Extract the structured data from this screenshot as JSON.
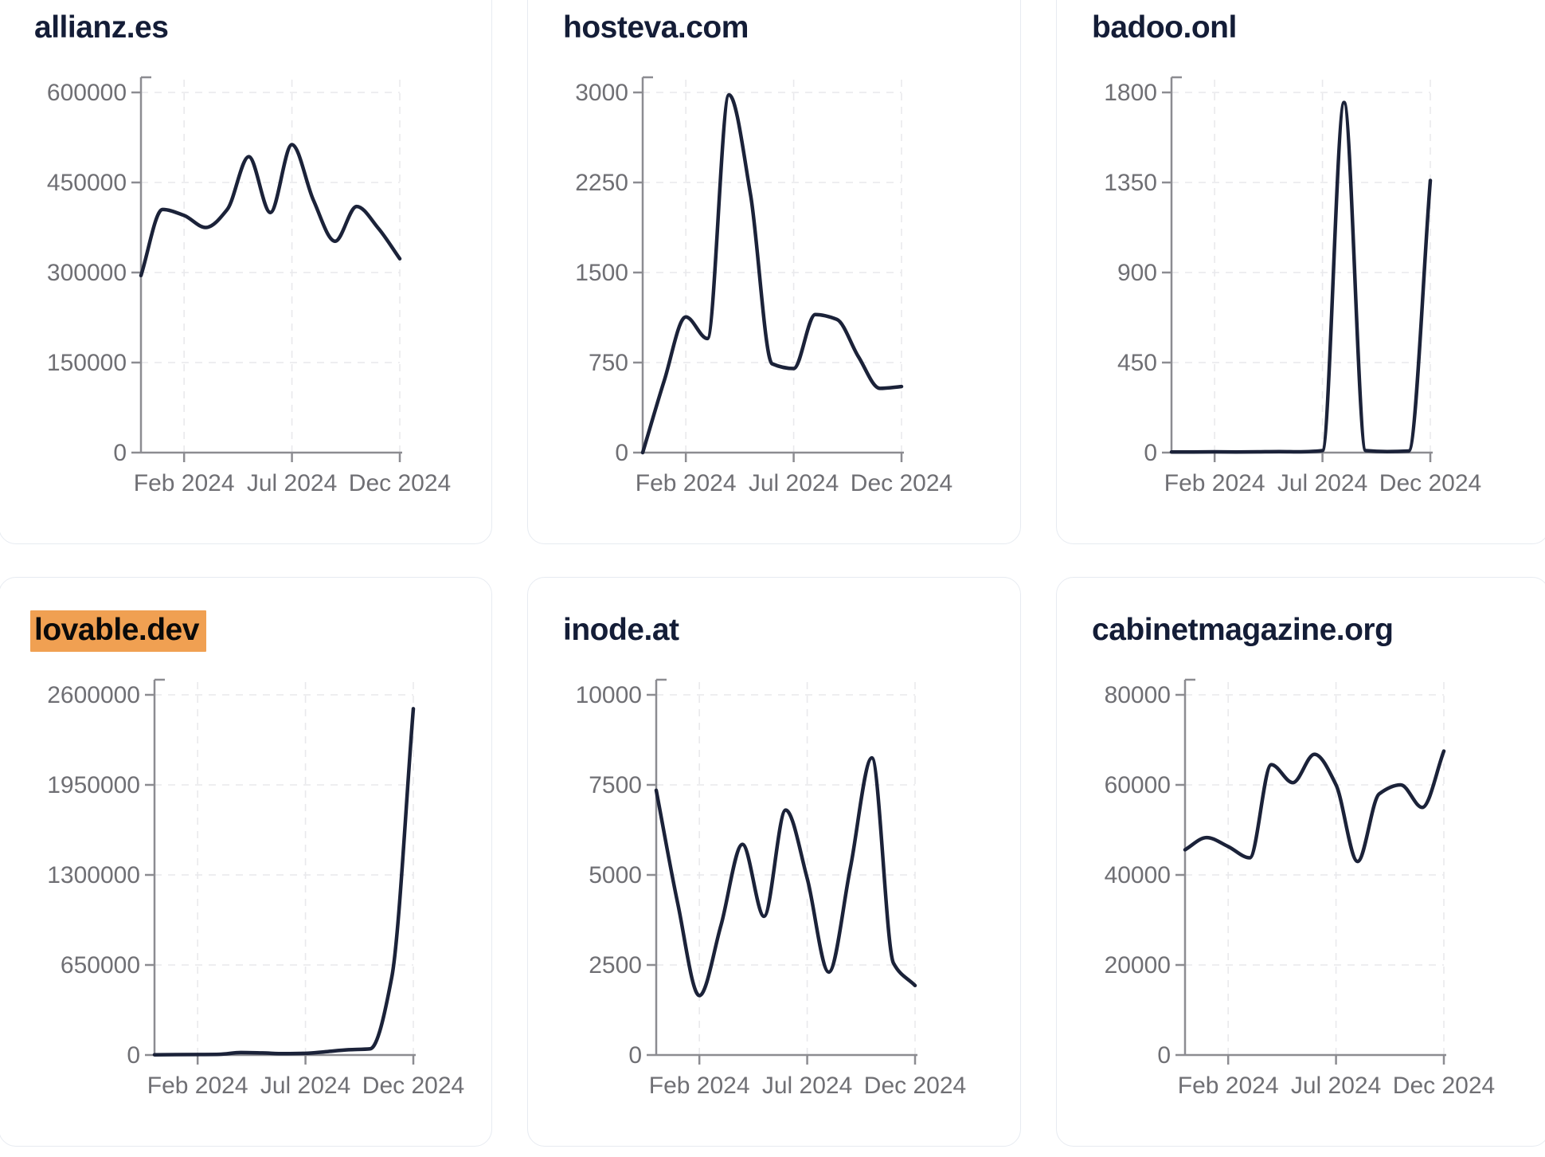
{
  "theme": {
    "page_background": "#ffffff",
    "card_background": "#ffffff",
    "card_border_color": "#e7ebf1",
    "line_color": "#1b2239",
    "title_color": "#141d37",
    "tick_label_color": "#6f6f74",
    "axis_color": "#8c8c91",
    "grid_color": "#e9e9ec",
    "highlight_color": "#f0a052",
    "highlight_text_color": "#0a0a0a"
  },
  "x_axis": {
    "tick_labels": [
      "Feb 2024",
      "Jul 2024",
      "Dec 2024"
    ],
    "tick_indices": [
      2,
      7,
      12
    ]
  },
  "chart_data": [
    {
      "type": "line",
      "title": "allianz.es",
      "title_highlighted": false,
      "x": [
        "Dec 2023",
        "Jan 2024",
        "Feb 2024",
        "Mar 2024",
        "Apr 2024",
        "May 2024",
        "Jun 2024",
        "Jul 2024",
        "Aug 2024",
        "Sep 2024",
        "Oct 2024",
        "Nov 2024",
        "Dec 2024"
      ],
      "x_tick_labels": [
        "Feb 2024",
        "Jul 2024",
        "Dec 2024"
      ],
      "x_tick_indices": [
        2,
        7,
        12
      ],
      "values": [
        295000,
        405000,
        395000,
        375000,
        405000,
        493000,
        400000,
        513000,
        420000,
        352000,
        410000,
        374000,
        323000
      ],
      "y_ticks": [
        0,
        150000,
        300000,
        450000,
        600000
      ],
      "ylim": [
        0,
        600000
      ],
      "grid": true,
      "legend": "none"
    },
    {
      "type": "line",
      "title": "hosteva.com",
      "title_highlighted": false,
      "x": [
        "Dec 2023",
        "Jan 2024",
        "Feb 2024",
        "Mar 2024",
        "Apr 2024",
        "May 2024",
        "Jun 2024",
        "Jul 2024",
        "Aug 2024",
        "Sep 2024",
        "Oct 2024",
        "Nov 2024",
        "Dec 2024"
      ],
      "x_tick_labels": [
        "Feb 2024",
        "Jul 2024",
        "Dec 2024"
      ],
      "x_tick_indices": [
        2,
        7,
        12
      ],
      "values": [
        0,
        600,
        1130,
        950,
        2980,
        2150,
        740,
        700,
        1150,
        1110,
        800,
        535,
        550
      ],
      "y_ticks": [
        0,
        750,
        1500,
        2250,
        3000
      ],
      "ylim": [
        0,
        3000
      ],
      "grid": true,
      "legend": "none"
    },
    {
      "type": "line",
      "title": "badoo.onl",
      "title_highlighted": false,
      "x": [
        "Dec 2023",
        "Jan 2024",
        "Feb 2024",
        "Mar 2024",
        "Apr 2024",
        "May 2024",
        "Jun 2024",
        "Jul 2024",
        "Aug 2024",
        "Sep 2024",
        "Oct 2024",
        "Nov 2024",
        "Dec 2024"
      ],
      "x_tick_labels": [
        "Feb 2024",
        "Jul 2024",
        "Dec 2024"
      ],
      "x_tick_indices": [
        2,
        7,
        12
      ],
      "values": [
        3,
        3,
        4,
        3,
        4,
        5,
        4,
        10,
        1750,
        10,
        5,
        8,
        1360
      ],
      "y_ticks": [
        0,
        450,
        900,
        1350,
        1800
      ],
      "ylim": [
        0,
        1800
      ],
      "grid": true,
      "legend": "none"
    },
    {
      "type": "line",
      "title": "lovable.dev",
      "title_highlighted": true,
      "x": [
        "Dec 2023",
        "Jan 2024",
        "Feb 2024",
        "Mar 2024",
        "Apr 2024",
        "May 2024",
        "Jun 2024",
        "Jul 2024",
        "Aug 2024",
        "Sep 2024",
        "Oct 2024",
        "Nov 2024",
        "Dec 2024"
      ],
      "x_tick_labels": [
        "Feb 2024",
        "Jul 2024",
        "Dec 2024"
      ],
      "x_tick_indices": [
        2,
        7,
        12
      ],
      "values": [
        2000,
        3000,
        3500,
        5000,
        18000,
        15000,
        10000,
        12000,
        25000,
        38000,
        45000,
        560000,
        2500000
      ],
      "y_ticks": [
        0,
        650000,
        1300000,
        1950000,
        2600000
      ],
      "ylim": [
        0,
        2600000
      ],
      "grid": true,
      "legend": "none"
    },
    {
      "type": "line",
      "title": "inode.at",
      "title_highlighted": false,
      "x": [
        "Dec 2023",
        "Jan 2024",
        "Feb 2024",
        "Mar 2024",
        "Apr 2024",
        "May 2024",
        "Jun 2024",
        "Jul 2024",
        "Aug 2024",
        "Sep 2024",
        "Oct 2024",
        "Nov 2024",
        "Dec 2024"
      ],
      "x_tick_labels": [
        "Feb 2024",
        "Jul 2024",
        "Dec 2024"
      ],
      "x_tick_indices": [
        2,
        7,
        12
      ],
      "values": [
        7350,
        4200,
        1650,
        3600,
        5850,
        3850,
        6800,
        4900,
        2300,
        5200,
        8250,
        2550,
        1930
      ],
      "y_ticks": [
        0,
        2500,
        5000,
        7500,
        10000
      ],
      "ylim": [
        0,
        10000
      ],
      "grid": true,
      "legend": "none"
    },
    {
      "type": "line",
      "title": "cabinetmagazine.org",
      "title_highlighted": false,
      "x": [
        "Dec 2023",
        "Jan 2024",
        "Feb 2024",
        "Mar 2024",
        "Apr 2024",
        "May 2024",
        "Jun 2024",
        "Jul 2024",
        "Aug 2024",
        "Sep 2024",
        "Oct 2024",
        "Nov 2024",
        "Dec 2024"
      ],
      "x_tick_labels": [
        "Feb 2024",
        "Jul 2024",
        "Dec 2024"
      ],
      "x_tick_indices": [
        2,
        7,
        12
      ],
      "values": [
        45600,
        48300,
        46300,
        43800,
        64500,
        60500,
        66800,
        60000,
        43000,
        58000,
        60000,
        55000,
        67500
      ],
      "y_ticks": [
        0,
        20000,
        40000,
        60000,
        80000
      ],
      "ylim": [
        0,
        80000
      ],
      "grid": true,
      "legend": "none"
    }
  ]
}
